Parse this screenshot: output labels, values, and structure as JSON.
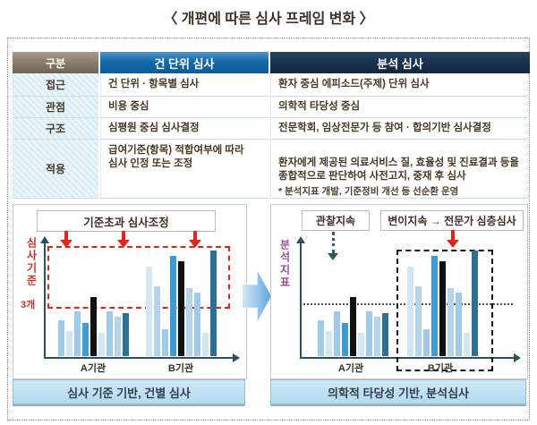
{
  "title": "〈 개편에 따른 심사 프레임 변화 〉",
  "table": {
    "col_headers": [
      "구분",
      "건 단위 심사",
      "분석 심사"
    ],
    "rows": [
      {
        "label": "접근",
        "unit_review": "건 단위 · 항목별 심사",
        "analysis_review": "환자 중심 에피소드(주제) 단위 심사"
      },
      {
        "label": "관점",
        "unit_review": "비용 중심",
        "analysis_review": "의학적 타당성 중심"
      },
      {
        "label": "구조",
        "unit_review": "심평원 중심 심사결정",
        "analysis_review": "전문학회, 임상전문가 등 참여 · 합의기반 심사결정"
      },
      {
        "label": "적용",
        "unit_review": "급여기준(항목) 적합여부에 따라\n심사 인정 또는 조정",
        "analysis_review_main": "환자에게 제공된 의료서비스 질, 효율성 및 진료결과 등을 종합적으로 판단하여 ",
        "analysis_review_bold": "사전고지, 중재 후 심사",
        "analysis_review_note": "* 분석지표 개발, 기준정비 개선 등 선순환 운영"
      }
    ]
  },
  "palette": {
    "vlight": "#d3e6f3",
    "pale": "#b6d5e9",
    "light": "#9ecbe7",
    "blue": "#3e9bd5",
    "black": "#111111",
    "teal": "#2d7095",
    "red_accent": "#e0251a",
    "header_blue": "#0c5b97",
    "header_navy": "#17304b",
    "header_taupe": "#857a67",
    "caption_blue": "#b3d9ee"
  },
  "chart_data": [
    {
      "type": "bar",
      "annotation_box": "기준초과 심사조정",
      "ylabel": "심사기준",
      "threshold_label": "3개",
      "threshold_pct": 46,
      "threshold_style": "red-dashed-region",
      "categories": [
        "A기관",
        "B기관"
      ],
      "groups": [
        {
          "category": "A기관",
          "bars": [
            {
              "v": 32,
              "c": "light"
            },
            {
              "v": 22,
              "c": "vlight"
            },
            {
              "v": 40,
              "c": "light"
            },
            {
              "v": 29,
              "c": "blue"
            },
            {
              "v": 52,
              "c": "black"
            },
            {
              "v": 21,
              "c": "vlight"
            },
            {
              "v": 40,
              "c": "light"
            },
            {
              "v": 35,
              "c": "pale"
            },
            {
              "v": 38,
              "c": "teal"
            }
          ]
        },
        {
          "category": "B기관",
          "bars": [
            {
              "v": 79,
              "c": "vlight"
            },
            {
              "v": 62,
              "c": "pale"
            },
            {
              "v": 24,
              "c": "light"
            },
            {
              "v": 89,
              "c": "blue"
            },
            {
              "v": 84,
              "c": "black"
            },
            {
              "v": 60,
              "c": "pale"
            },
            {
              "v": 56,
              "c": "light"
            },
            {
              "v": 21,
              "c": "vlight"
            },
            {
              "v": 94,
              "c": "teal"
            }
          ]
        }
      ],
      "caption": "심사 기준 기반, 건별 심사"
    },
    {
      "type": "bar",
      "annotations": [
        "관찰지속",
        "변이지속 → 전문가 심층심사"
      ],
      "ylabel": "분석지표",
      "threshold_pct": 46,
      "threshold_style": "black-dotted-line",
      "categories": [
        "A기관",
        "B기관"
      ],
      "groups": [
        {
          "category": "A기관",
          "bars": [
            {
              "v": 32,
              "c": "light"
            },
            {
              "v": 22,
              "c": "vlight"
            },
            {
              "v": 40,
              "c": "light"
            },
            {
              "v": 29,
              "c": "blue"
            },
            {
              "v": 52,
              "c": "black"
            },
            {
              "v": 21,
              "c": "vlight"
            },
            {
              "v": 40,
              "c": "light"
            },
            {
              "v": 35,
              "c": "pale"
            },
            {
              "v": 38,
              "c": "teal"
            }
          ]
        },
        {
          "category": "B기관",
          "bars": [
            {
              "v": 79,
              "c": "vlight"
            },
            {
              "v": 62,
              "c": "pale"
            },
            {
              "v": 24,
              "c": "light"
            },
            {
              "v": 89,
              "c": "blue"
            },
            {
              "v": 84,
              "c": "black"
            },
            {
              "v": 60,
              "c": "pale"
            },
            {
              "v": 56,
              "c": "light"
            },
            {
              "v": 21,
              "c": "vlight"
            },
            {
              "v": 94,
              "c": "teal"
            }
          ]
        }
      ],
      "caption": "의학적 타당성 기반, 분석심사"
    }
  ]
}
